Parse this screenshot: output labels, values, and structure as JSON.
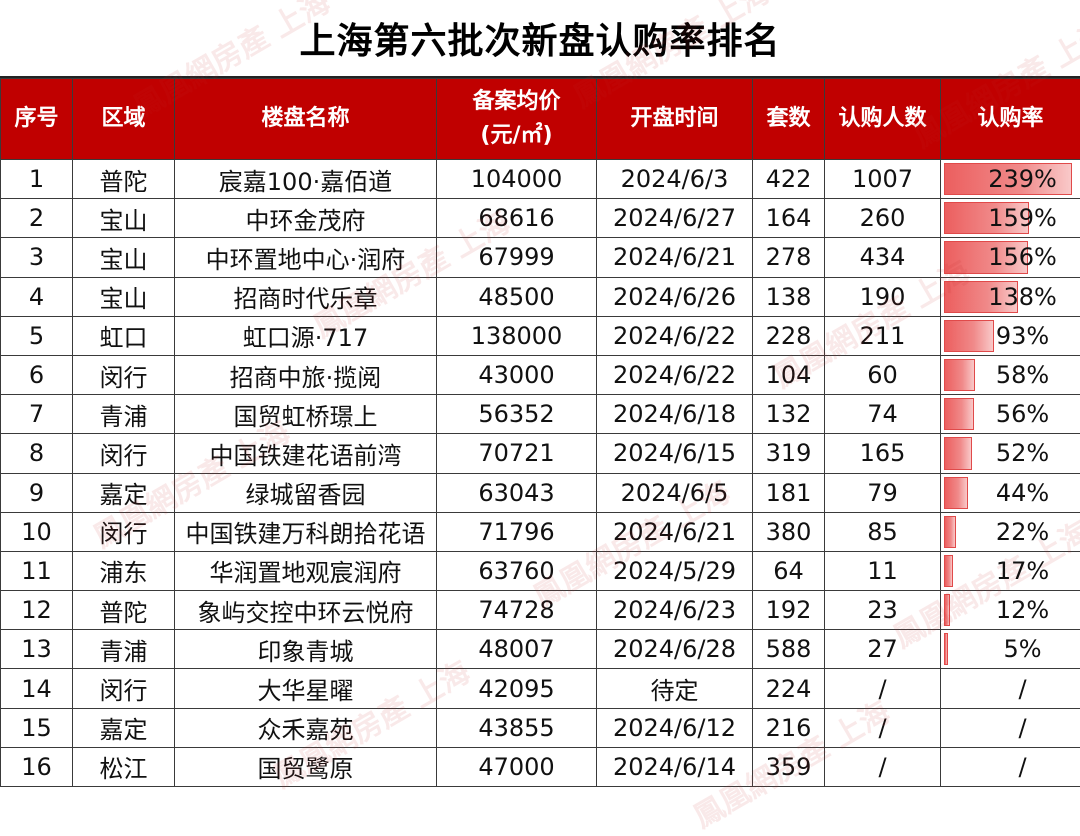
{
  "title": "上海第六批次新盘认购率排名",
  "colors": {
    "header_bg": "#c00000",
    "header_text": "#ffffff",
    "bar": "#ec5f5f"
  },
  "watermark_text": "鳳凰網房產 上海",
  "headers": {
    "seq": "序号",
    "district": "区域",
    "name": "楼盘名称",
    "price_line1": "备案均价",
    "price_line2": "(元/㎡)",
    "open_time": "开盘时间",
    "units": "套数",
    "subscribers": "认购人数",
    "rate": "认购率"
  },
  "rows": [
    {
      "seq": "1",
      "district": "普陀",
      "name": "宸嘉100·嘉佰道",
      "price": "104000",
      "open_time": "2024/6/3",
      "units": "422",
      "subscribers": "1007",
      "rate": "239%",
      "rate_value": 2.39
    },
    {
      "seq": "2",
      "district": "宝山",
      "name": "中环金茂府",
      "price": "68616",
      "open_time": "2024/6/27",
      "units": "164",
      "subscribers": "260",
      "rate": "159%",
      "rate_value": 1.59
    },
    {
      "seq": "3",
      "district": "宝山",
      "name": "中环置地中心·润府",
      "price": "67999",
      "open_time": "2024/6/21",
      "units": "278",
      "subscribers": "434",
      "rate": "156%",
      "rate_value": 1.56
    },
    {
      "seq": "4",
      "district": "宝山",
      "name": "招商时代乐章",
      "price": "48500",
      "open_time": "2024/6/26",
      "units": "138",
      "subscribers": "190",
      "rate": "138%",
      "rate_value": 1.38
    },
    {
      "seq": "5",
      "district": "虹口",
      "name": "虹口源·717",
      "price": "138000",
      "open_time": "2024/6/22",
      "units": "228",
      "subscribers": "211",
      "rate": "93%",
      "rate_value": 0.93
    },
    {
      "seq": "6",
      "district": "闵行",
      "name": "招商中旅·揽阅",
      "price": "43000",
      "open_time": "2024/6/22",
      "units": "104",
      "subscribers": "60",
      "rate": "58%",
      "rate_value": 0.58
    },
    {
      "seq": "7",
      "district": "青浦",
      "name": "国贸虹桥璟上",
      "price": "56352",
      "open_time": "2024/6/18",
      "units": "132",
      "subscribers": "74",
      "rate": "56%",
      "rate_value": 0.56
    },
    {
      "seq": "8",
      "district": "闵行",
      "name": "中国铁建花语前湾",
      "price": "70721",
      "open_time": "2024/6/15",
      "units": "319",
      "subscribers": "165",
      "rate": "52%",
      "rate_value": 0.52
    },
    {
      "seq": "9",
      "district": "嘉定",
      "name": "绿城留香园",
      "price": "63043",
      "open_time": "2024/6/5",
      "units": "181",
      "subscribers": "79",
      "rate": "44%",
      "rate_value": 0.44
    },
    {
      "seq": "10",
      "district": "闵行",
      "name": "中国铁建万科朗拾花语",
      "price": "71796",
      "open_time": "2024/6/21",
      "units": "380",
      "subscribers": "85",
      "rate": "22%",
      "rate_value": 0.22
    },
    {
      "seq": "11",
      "district": "浦东",
      "name": "华润置地观宸润府",
      "price": "63760",
      "open_time": "2024/5/29",
      "units": "64",
      "subscribers": "11",
      "rate": "17%",
      "rate_value": 0.17
    },
    {
      "seq": "12",
      "district": "普陀",
      "name": "象屿交控中环云悦府",
      "price": "74728",
      "open_time": "2024/6/23",
      "units": "192",
      "subscribers": "23",
      "rate": "12%",
      "rate_value": 0.12
    },
    {
      "seq": "13",
      "district": "青浦",
      "name": "印象青城",
      "price": "48007",
      "open_time": "2024/6/28",
      "units": "588",
      "subscribers": "27",
      "rate": "5%",
      "rate_value": 0.05
    },
    {
      "seq": "14",
      "district": "闵行",
      "name": "大华星曜",
      "price": "42095",
      "open_time": "待定",
      "units": "224",
      "subscribers": "/",
      "rate": "/",
      "rate_value": 0
    },
    {
      "seq": "15",
      "district": "嘉定",
      "name": "众禾嘉苑",
      "price": "43855",
      "open_time": "2024/6/12",
      "units": "216",
      "subscribers": "/",
      "rate": "/",
      "rate_value": 0
    },
    {
      "seq": "16",
      "district": "松江",
      "name": "国贸鹭原",
      "price": "47000",
      "open_time": "2024/6/14",
      "units": "359",
      "subscribers": "/",
      "rate": "/",
      "rate_value": 0
    }
  ]
}
